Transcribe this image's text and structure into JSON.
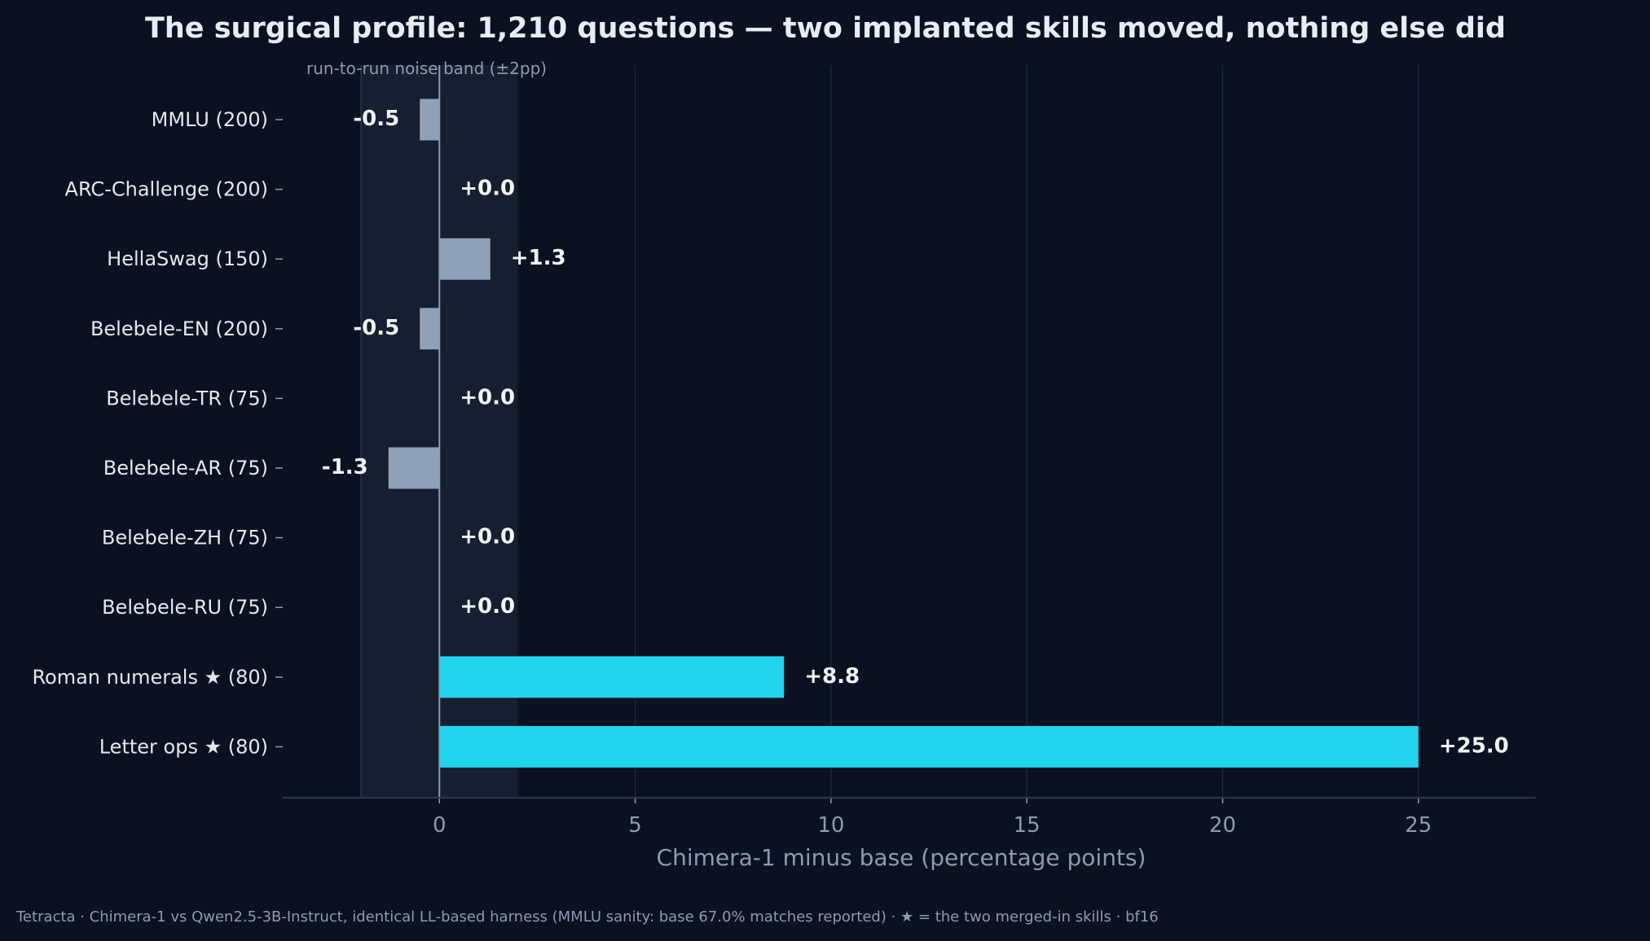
{
  "chart_data": {
    "type": "bar",
    "orientation": "horizontal",
    "title": "The surgical profile: 1,210 questions — two implanted skills moved, nothing else did",
    "xlabel": "Chimera-1 minus base  (percentage points)",
    "ylabel": "",
    "xlim": [
      -4,
      28
    ],
    "xticks": [
      0,
      5,
      10,
      15,
      20,
      25
    ],
    "grid": "vertical",
    "noise_band": {
      "label": "run-to-run noise band (±2pp)",
      "range": [
        -2,
        2
      ]
    },
    "categories": [
      "MMLU (200)",
      "ARC-Challenge (200)",
      "HellaSwag (150)",
      "Belebele-EN (200)",
      "Belebele-TR (75)",
      "Belebele-AR (75)",
      "Belebele-ZH (75)",
      "Belebele-RU (75)",
      "Roman numerals ★ (80)",
      "Letter ops ★ (80)"
    ],
    "values": [
      -0.5,
      0.0,
      1.3,
      -0.5,
      0.0,
      -1.3,
      0.0,
      0.0,
      8.8,
      25.0
    ],
    "value_labels": [
      "-0.5",
      "+0.0",
      "+1.3",
      "-0.5",
      "+0.0",
      "-1.3",
      "+0.0",
      "+0.0",
      "+8.8",
      "+25.0"
    ],
    "highlighted": [
      false,
      false,
      false,
      false,
      false,
      false,
      false,
      false,
      true,
      true
    ],
    "colors": {
      "background": "#0a1120",
      "bar": "#8fa1b9",
      "highlight": "#22d3ee",
      "noise_band": "#161f30",
      "grid": "#1b2840"
    }
  },
  "footer": "Tetracta · Chimera-1 vs Qwen2.5-3B-Instruct, identical LL-based harness (MMLU sanity: base 67.0% matches reported) · ★ = the two merged-in skills · bf16"
}
